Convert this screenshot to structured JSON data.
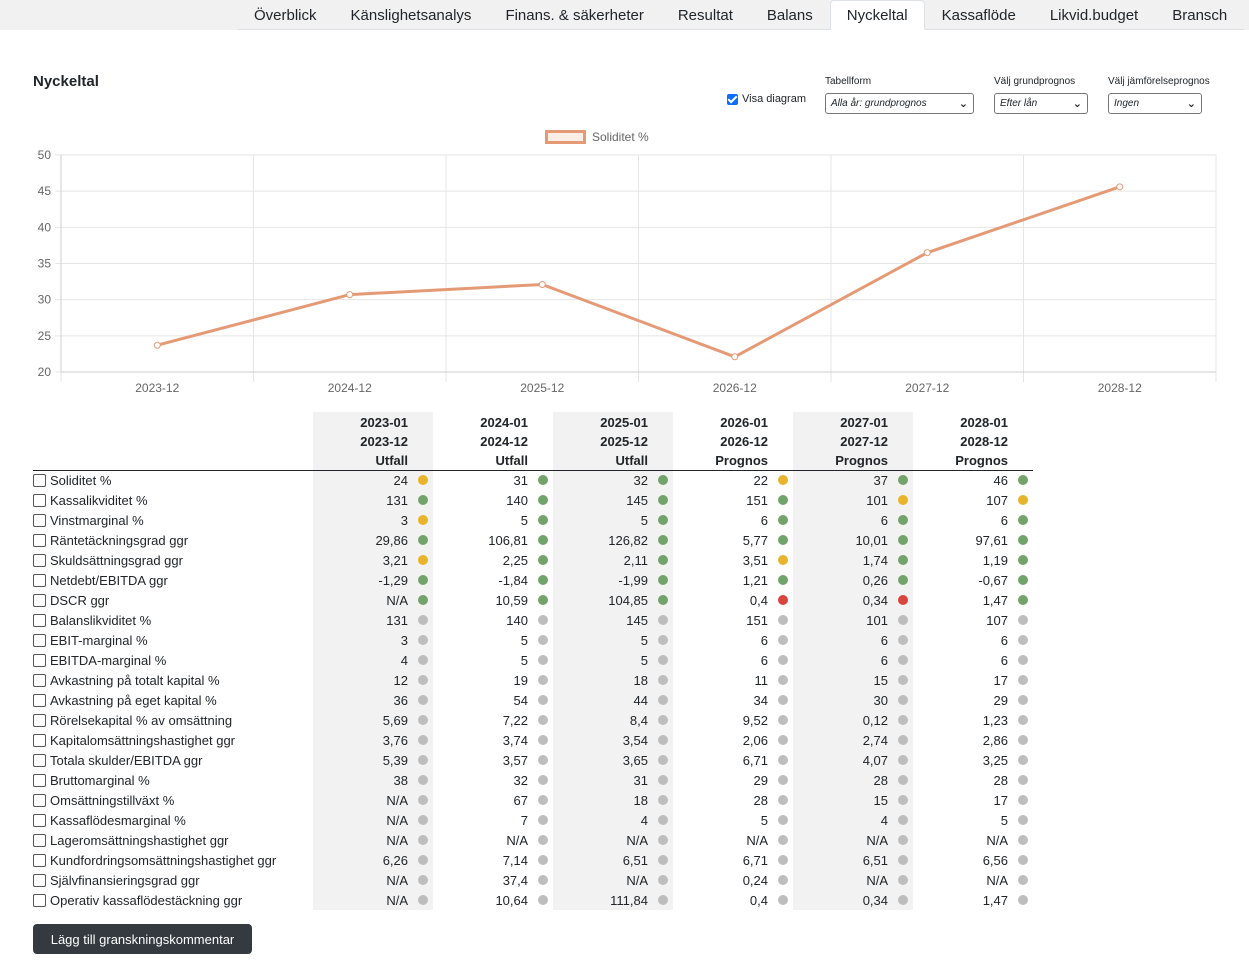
{
  "tabs": [
    {
      "label": "Överblick",
      "active": false
    },
    {
      "label": "Känslighetsanalys",
      "active": false
    },
    {
      "label": "Finans. & säkerheter",
      "active": false
    },
    {
      "label": "Resultat",
      "active": false
    },
    {
      "label": "Balans",
      "active": false
    },
    {
      "label": "Nyckeltal",
      "active": true
    },
    {
      "label": "Kassaflöde",
      "active": false
    },
    {
      "label": "Likvid.budget",
      "active": false
    },
    {
      "label": "Bransch",
      "active": false
    }
  ],
  "page_title": "Nyckeltal",
  "controls": {
    "show_diagram_label": "Visa diagram",
    "show_diagram_checked": true,
    "table_form": {
      "label": "Tabellform",
      "value": "Alla år: grundprognos"
    },
    "base_forecast": {
      "label": "Välj grundprognos",
      "value": "Efter lån"
    },
    "compare_forecast": {
      "label": "Välj jämförelseprognos",
      "value": "Ingen"
    }
  },
  "chart_data": {
    "type": "line",
    "categories": [
      "2023-12",
      "2024-12",
      "2025-12",
      "2026-12",
      "2027-12",
      "2028-12"
    ],
    "series": [
      {
        "name": "Soliditet %",
        "values": [
          23.7,
          30.7,
          32.1,
          22.1,
          36.5,
          45.6
        ],
        "color": "#e59a76"
      }
    ],
    "y_ticks": [
      20,
      25,
      30,
      35,
      40,
      45,
      50
    ],
    "ylim": [
      20,
      50
    ],
    "grid": true,
    "legend": "top-center"
  },
  "table": {
    "headers": [
      {
        "line1": "2023-01",
        "line2": "2023-12",
        "line3": "Utfall",
        "shaded": true
      },
      {
        "line1": "2024-01",
        "line2": "2024-12",
        "line3": "Utfall",
        "shaded": false
      },
      {
        "line1": "2025-01",
        "line2": "2025-12",
        "line3": "Utfall",
        "shaded": true
      },
      {
        "line1": "2026-01",
        "line2": "2026-12",
        "line3": "Prognos",
        "shaded": false
      },
      {
        "line1": "2027-01",
        "line2": "2027-12",
        "line3": "Prognos",
        "shaded": true
      },
      {
        "line1": "2028-01",
        "line2": "2028-12",
        "line3": "Prognos",
        "shaded": false
      }
    ],
    "status_colors": {
      "green": "#72a36a",
      "yellow": "#e7b42b",
      "red": "#d9453d",
      "gray": "#bdbdbd"
    },
    "rows": [
      {
        "label": "Soliditet %",
        "values": [
          "24",
          "31",
          "32",
          "22",
          "37",
          "46"
        ],
        "status": [
          "yellow",
          "green",
          "green",
          "yellow",
          "green",
          "green"
        ]
      },
      {
        "label": "Kassalikviditet %",
        "values": [
          "131",
          "140",
          "145",
          "151",
          "101",
          "107"
        ],
        "status": [
          "green",
          "green",
          "green",
          "green",
          "yellow",
          "yellow"
        ]
      },
      {
        "label": "Vinstmarginal %",
        "values": [
          "3",
          "5",
          "5",
          "6",
          "6",
          "6"
        ],
        "status": [
          "yellow",
          "green",
          "green",
          "green",
          "green",
          "green"
        ]
      },
      {
        "label": "Räntetäckningsgrad ggr",
        "values": [
          "29,86",
          "106,81",
          "126,82",
          "5,77",
          "10,01",
          "97,61"
        ],
        "status": [
          "green",
          "green",
          "green",
          "green",
          "green",
          "green"
        ]
      },
      {
        "label": "Skuldsättningsgrad ggr",
        "values": [
          "3,21",
          "2,25",
          "2,11",
          "3,51",
          "1,74",
          "1,19"
        ],
        "status": [
          "yellow",
          "green",
          "green",
          "yellow",
          "green",
          "green"
        ]
      },
      {
        "label": "Netdebt/EBITDA ggr",
        "values": [
          "-1,29",
          "-1,84",
          "-1,99",
          "1,21",
          "0,26",
          "-0,67"
        ],
        "status": [
          "green",
          "green",
          "green",
          "green",
          "green",
          "green"
        ]
      },
      {
        "label": "DSCR ggr",
        "values": [
          "N/A",
          "10,59",
          "104,85",
          "0,4",
          "0,34",
          "1,47"
        ],
        "status": [
          "green",
          "green",
          "green",
          "red",
          "red",
          "green"
        ]
      },
      {
        "label": "Balanslikviditet %",
        "values": [
          "131",
          "140",
          "145",
          "151",
          "101",
          "107"
        ],
        "status": [
          "gray",
          "gray",
          "gray",
          "gray",
          "gray",
          "gray"
        ]
      },
      {
        "label": "EBIT-marginal %",
        "values": [
          "3",
          "5",
          "5",
          "6",
          "6",
          "6"
        ],
        "status": [
          "gray",
          "gray",
          "gray",
          "gray",
          "gray",
          "gray"
        ]
      },
      {
        "label": "EBITDA-marginal %",
        "values": [
          "4",
          "5",
          "5",
          "6",
          "6",
          "6"
        ],
        "status": [
          "gray",
          "gray",
          "gray",
          "gray",
          "gray",
          "gray"
        ]
      },
      {
        "label": "Avkastning på totalt kapital %",
        "values": [
          "12",
          "19",
          "18",
          "11",
          "15",
          "17"
        ],
        "status": [
          "gray",
          "gray",
          "gray",
          "gray",
          "gray",
          "gray"
        ]
      },
      {
        "label": "Avkastning på eget kapital %",
        "values": [
          "36",
          "54",
          "44",
          "34",
          "30",
          "29"
        ],
        "status": [
          "gray",
          "gray",
          "gray",
          "gray",
          "gray",
          "gray"
        ]
      },
      {
        "label": "Rörelsekapital % av omsättning",
        "values": [
          "5,69",
          "7,22",
          "8,4",
          "9,52",
          "0,12",
          "1,23"
        ],
        "status": [
          "gray",
          "gray",
          "gray",
          "gray",
          "gray",
          "gray"
        ]
      },
      {
        "label": "Kapitalomsättningshastighet ggr",
        "values": [
          "3,76",
          "3,74",
          "3,54",
          "2,06",
          "2,74",
          "2,86"
        ],
        "status": [
          "gray",
          "gray",
          "gray",
          "gray",
          "gray",
          "gray"
        ]
      },
      {
        "label": "Totala skulder/EBITDA ggr",
        "values": [
          "5,39",
          "3,57",
          "3,65",
          "6,71",
          "4,07",
          "3,25"
        ],
        "status": [
          "gray",
          "gray",
          "gray",
          "gray",
          "gray",
          "gray"
        ]
      },
      {
        "label": "Bruttomarginal %",
        "values": [
          "38",
          "32",
          "31",
          "29",
          "28",
          "28"
        ],
        "status": [
          "gray",
          "gray",
          "gray",
          "gray",
          "gray",
          "gray"
        ]
      },
      {
        "label": "Omsättningstillväxt %",
        "values": [
          "N/A",
          "67",
          "18",
          "28",
          "15",
          "17"
        ],
        "status": [
          "gray",
          "gray",
          "gray",
          "gray",
          "gray",
          "gray"
        ]
      },
      {
        "label": "Kassaflödesmarginal %",
        "values": [
          "N/A",
          "7",
          "4",
          "5",
          "4",
          "5"
        ],
        "status": [
          "gray",
          "gray",
          "gray",
          "gray",
          "gray",
          "gray"
        ]
      },
      {
        "label": "Lageromsättningshastighet ggr",
        "values": [
          "N/A",
          "N/A",
          "N/A",
          "N/A",
          "N/A",
          "N/A"
        ],
        "status": [
          "gray",
          "gray",
          "gray",
          "gray",
          "gray",
          "gray"
        ]
      },
      {
        "label": "Kundfordringsomsättningshastighet ggr",
        "values": [
          "6,26",
          "7,14",
          "6,51",
          "6,71",
          "6,51",
          "6,56"
        ],
        "status": [
          "gray",
          "gray",
          "gray",
          "gray",
          "gray",
          "gray"
        ]
      },
      {
        "label": "Självfinansieringsgrad ggr",
        "values": [
          "N/A",
          "37,4",
          "N/A",
          "0,24",
          "N/A",
          "N/A"
        ],
        "status": [
          "gray",
          "gray",
          "gray",
          "gray",
          "gray",
          "gray"
        ]
      },
      {
        "label": "Operativ kassaflödestäckning ggr",
        "values": [
          "N/A",
          "10,64",
          "111,84",
          "0,4",
          "0,34",
          "1,47"
        ],
        "status": [
          "gray",
          "gray",
          "gray",
          "gray",
          "gray",
          "gray"
        ]
      }
    ]
  },
  "add_comment_button": "Lägg till granskningskommentar"
}
